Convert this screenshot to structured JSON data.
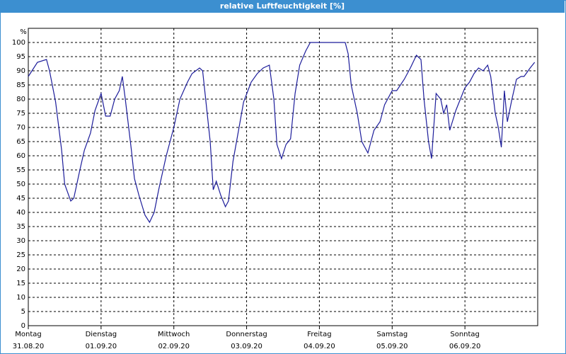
{
  "chart_data": {
    "type": "line",
    "title": "relative Luftfeuchtigkeit [%]",
    "ylabel": "%",
    "xlim": [
      0,
      168
    ],
    "xticks": [
      {
        "value": 0,
        "label": "Montag"
      },
      {
        "value": 24,
        "label": "Dienstag"
      },
      {
        "value": 48,
        "label": "Mittwoch"
      },
      {
        "value": 72,
        "label": "Donnerstag"
      },
      {
        "value": 96,
        "label": "Freitag"
      },
      {
        "value": 120,
        "label": "Samstag"
      },
      {
        "value": 144,
        "label": "Sonntag"
      }
    ],
    "xtick_dates": [
      "31.08.20",
      "01.09.20",
      "02.09.20",
      "03.09.20",
      "04.09.20",
      "05.09.20",
      "06.09.20"
    ],
    "ylim": [
      0,
      105
    ],
    "yticks": [
      0,
      5,
      10,
      15,
      20,
      25,
      30,
      35,
      40,
      45,
      50,
      55,
      60,
      65,
      70,
      75,
      80,
      85,
      90,
      95,
      100
    ],
    "grid": true,
    "series": [
      {
        "name": "relative Luftfeuchtigkeit",
        "color": "#1c1c9a",
        "x": [
          0,
          3,
          6,
          7,
          9,
          11,
          12,
          14,
          15,
          17,
          18.5,
          20.5,
          22,
          24,
          25.5,
          27,
          28.5,
          30,
          31,
          32,
          34,
          35,
          36.5,
          38.5,
          40,
          41.5,
          43,
          45.5,
          48,
          50,
          52.5,
          54,
          56.5,
          57.5,
          58.5,
          60,
          61,
          62,
          63.5,
          65,
          66,
          67.5,
          69.5,
          71,
          73.5,
          75.5,
          77.5,
          79.5,
          81,
          82,
          83.5,
          85,
          86.5,
          88,
          89.5,
          91.5,
          93,
          104.5,
          105.5,
          106.5,
          108.5,
          110,
          112,
          114,
          116,
          117.5,
          120,
          121.5,
          124,
          126,
          128,
          129.5,
          130.5,
          132,
          133,
          134.5,
          136,
          137,
          138,
          139,
          141,
          142.5,
          144,
          145.5,
          147,
          148.5,
          150,
          151.5,
          152.5,
          154,
          155,
          156,
          157,
          158,
          159.5,
          161,
          162.5,
          163.5,
          165.5,
          167
        ],
        "values": [
          88,
          93,
          94,
          90,
          79,
          62,
          50,
          44,
          45,
          55,
          62,
          68,
          76,
          82,
          74,
          74,
          80,
          83,
          88,
          80,
          62,
          52,
          46,
          39,
          36.5,
          40,
          48,
          60,
          70,
          80,
          86,
          89,
          91,
          90,
          80,
          65,
          48,
          51,
          46,
          42,
          44,
          58,
          70,
          79,
          86,
          89,
          91,
          92,
          80,
          64,
          59,
          64,
          66,
          82,
          92,
          97,
          100,
          100,
          96,
          85,
          75,
          65,
          61,
          69,
          72,
          78,
          83,
          83,
          87,
          91,
          95.5,
          94,
          80,
          65,
          59,
          82,
          80,
          75,
          78,
          69,
          76,
          80,
          84,
          86,
          89,
          91,
          90,
          92,
          88,
          75,
          70,
          63,
          83,
          72,
          80,
          87,
          88,
          88,
          91,
          93
        ]
      }
    ]
  }
}
